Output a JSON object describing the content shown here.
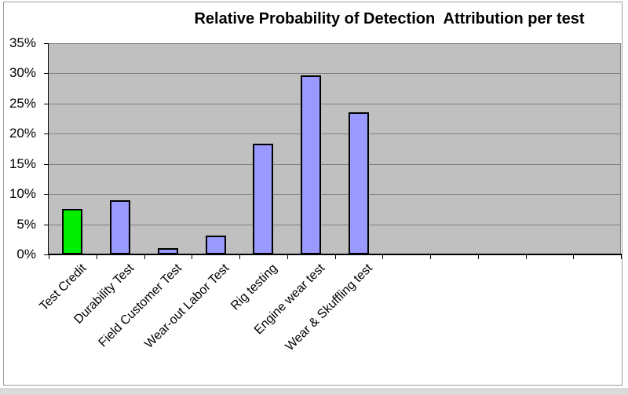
{
  "chart_data": {
    "type": "bar",
    "title": "Relative Probability of Detection  Attribution per test",
    "categories": [
      "Test Credit",
      "Durability Test",
      "Field Customer Test",
      "Wear-out Labor Test",
      "Rig testing",
      "Engine wear test",
      "Wear & Skuffling test"
    ],
    "values": [
      7.5,
      9,
      1.1,
      3.1,
      18.3,
      29.7,
      23.5
    ],
    "unit": "%",
    "xlabel": "",
    "ylabel": "",
    "ylim": [
      0,
      35
    ],
    "ytick_step": 5,
    "y_tick_labels": [
      "35%",
      "30%",
      "25%",
      "20%",
      "15%",
      "10%",
      "5%",
      "0%"
    ],
    "legend": "none",
    "gridlines": "horizontal",
    "x_axis_slots": 12,
    "x_label_rotation_deg": 45,
    "colors": {
      "bar_default": "#9999FF",
      "bar_first": "#00EE00",
      "bar_border": "#000000",
      "plot_background": "#C0C0C0",
      "gridline": "#808080",
      "axis": "#000000",
      "frame_border": "#9c9c9c",
      "page_bottom_strip": "#DADADA"
    }
  }
}
